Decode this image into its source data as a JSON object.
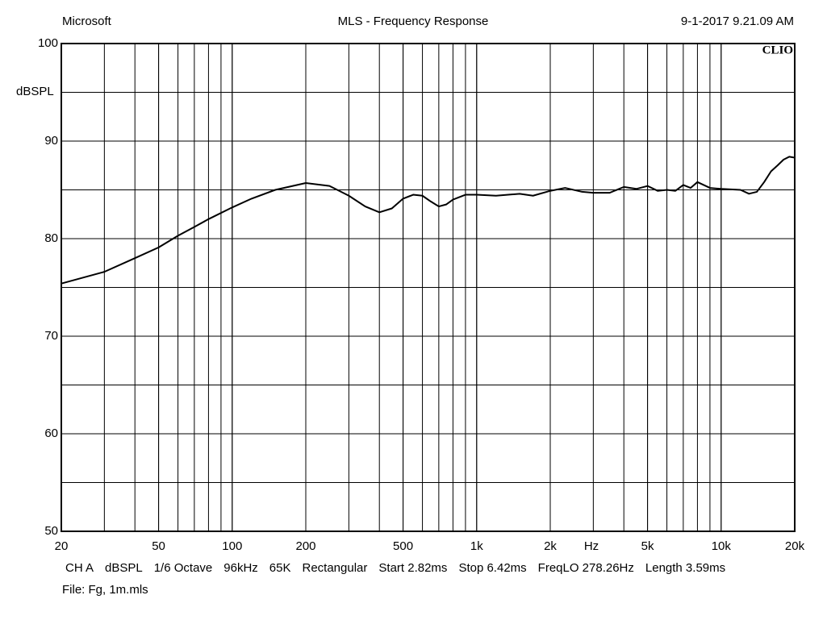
{
  "chart_data": {
    "type": "line",
    "header_left": "Microsoft",
    "title": "MLS - Frequency Response",
    "timestamp": "9-1-2017 9.21.09 AM",
    "brand": "CLIO",
    "y_label": "dBSPL",
    "x_label": "Hz",
    "x_scale": "log",
    "minor_grid": true,
    "xlim": [
      20,
      20000
    ],
    "ylim": [
      50,
      100
    ],
    "xticks": [
      20,
      50,
      100,
      200,
      500,
      {
        "value": 1000,
        "label": "1k"
      },
      {
        "value": 2000,
        "label": "2k"
      },
      {
        "value": 5000,
        "label": "5k"
      },
      {
        "value": 10000,
        "label": "10k"
      },
      {
        "value": 20000,
        "label": "20k"
      }
    ],
    "yticks": [
      50,
      60,
      70,
      80,
      90,
      100
    ],
    "x": [
      20,
      30,
      40,
      50,
      60,
      70,
      80,
      100,
      120,
      150,
      200,
      250,
      300,
      350,
      400,
      450,
      500,
      550,
      600,
      650,
      700,
      750,
      800,
      900,
      1000,
      1200,
      1500,
      1700,
      2000,
      2300,
      2700,
      3000,
      3500,
      4000,
      4500,
      5000,
      5500,
      6000,
      6500,
      7000,
      7500,
      8000,
      9000,
      10000,
      12000,
      13000,
      14000,
      15000,
      16000,
      17000,
      18000,
      19000,
      20000
    ],
    "series": [
      {
        "color": "#000000",
        "values": [
          75.4,
          76.6,
          78.0,
          79.1,
          80.3,
          81.2,
          82.0,
          83.2,
          84.1,
          85.0,
          85.7,
          85.4,
          84.4,
          83.3,
          82.7,
          83.1,
          84.1,
          84.5,
          84.4,
          83.8,
          83.3,
          83.5,
          84.0,
          84.5,
          84.5,
          84.4,
          84.6,
          84.4,
          84.9,
          85.2,
          84.8,
          84.7,
          84.7,
          85.3,
          85.1,
          85.4,
          84.9,
          85.0,
          84.9,
          85.5,
          85.2,
          85.8,
          85.2,
          85.1,
          85.0,
          84.6,
          84.8,
          85.8,
          86.9,
          87.5,
          88.1,
          88.4,
          88.3
        ]
      }
    ],
    "footer": [
      "CH A",
      "dBSPL",
      "1/6 Octave",
      "96kHz",
      "65K",
      "Rectangular",
      "Start 2.82ms",
      "Stop 6.42ms",
      "FreqLO 278.26Hz",
      "Length 3.59ms"
    ],
    "file": "File: Fg, 1m.mls"
  }
}
